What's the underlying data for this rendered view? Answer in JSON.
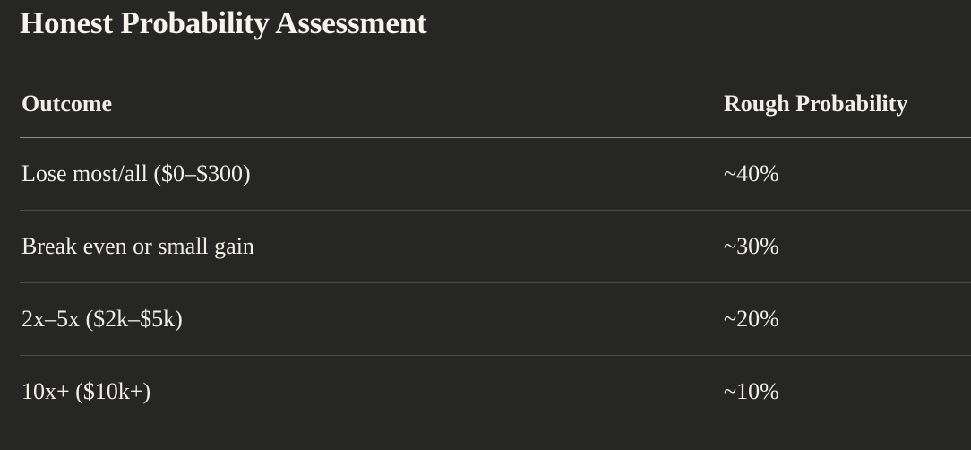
{
  "title": "Honest Probability Assessment",
  "table": {
    "headers": [
      "Outcome",
      "Rough Probability"
    ],
    "rows": [
      [
        "Lose most/all ($0–$300)",
        "~40%"
      ],
      [
        "Break even or small gain",
        "~30%"
      ],
      [
        "2x–5x ($2k–$5k)",
        "~20%"
      ],
      [
        "10x+ ($10k+)",
        "~10%"
      ]
    ]
  }
}
